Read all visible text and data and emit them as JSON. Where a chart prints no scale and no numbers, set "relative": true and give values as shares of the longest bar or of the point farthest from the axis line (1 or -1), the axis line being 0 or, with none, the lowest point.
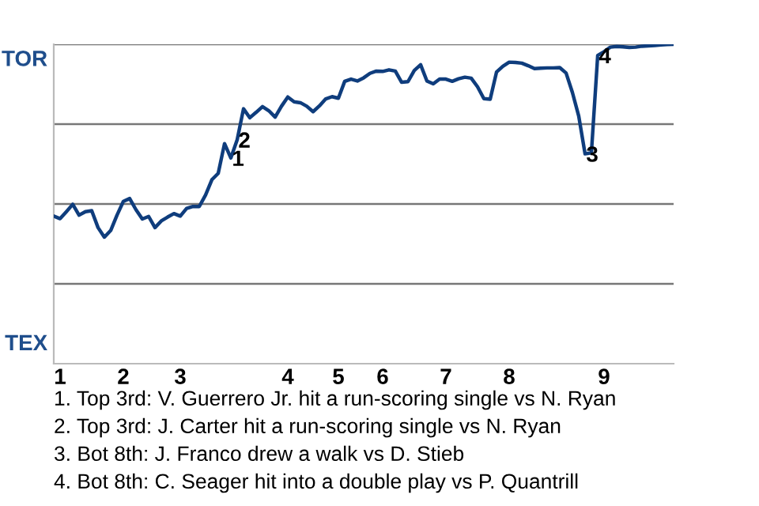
{
  "chart_data": {
    "type": "line",
    "relative": true,
    "categories": [
      null,
      "1",
      null,
      null,
      null,
      null,
      null,
      null,
      null,
      null,
      null,
      "2",
      null,
      null,
      null,
      null,
      null,
      null,
      null,
      null,
      "3",
      null,
      null,
      null,
      null,
      null,
      null,
      null,
      null,
      null,
      null,
      null,
      null,
      null,
      null,
      null,
      null,
      "4",
      null,
      null,
      null,
      null,
      null,
      null,
      null,
      "5",
      null,
      null,
      null,
      null,
      null,
      null,
      "6",
      null,
      null,
      null,
      null,
      null,
      null,
      null,
      null,
      null,
      "7",
      null,
      null,
      null,
      null,
      null,
      null,
      null,
      null,
      null,
      "8",
      null,
      null,
      null,
      null,
      null,
      null,
      null,
      null,
      null,
      null,
      null,
      null,
      null,
      null,
      "9",
      null,
      null,
      null,
      null,
      null,
      null,
      null,
      null,
      null,
      null,
      null
    ],
    "series": [
      {
        "color": "#0f3d7d",
        "values": [
          0.462,
          0.454,
          0.476,
          0.499,
          0.465,
          0.476,
          0.479,
          0.426,
          0.396,
          0.417,
          0.465,
          0.508,
          0.517,
          0.482,
          0.453,
          0.461,
          0.426,
          0.447,
          0.459,
          0.47,
          0.462,
          0.486,
          0.492,
          0.492,
          0.528,
          0.576,
          0.596,
          0.689,
          0.644,
          0.701,
          0.798,
          0.77,
          0.787,
          0.805,
          0.792,
          0.772,
          0.806,
          0.835,
          0.82,
          0.817,
          0.806,
          0.789,
          0.807,
          0.829,
          0.836,
          0.831,
          0.884,
          0.891,
          0.885,
          0.895,
          0.909,
          0.916,
          0.915,
          0.92,
          0.916,
          0.881,
          0.883,
          0.918,
          0.936,
          0.885,
          0.876,
          0.891,
          0.891,
          0.884,
          0.892,
          0.897,
          0.894,
          0.867,
          0.83,
          0.828,
          0.913,
          0.931,
          0.944,
          0.943,
          0.941,
          0.933,
          0.924,
          0.925,
          0.926,
          0.926,
          0.927,
          0.91,
          0.849,
          0.775,
          0.657,
          0.66,
          0.965,
          0.977,
          0.991,
          0.993,
          0.992,
          0.99,
          0.991,
          0.994,
          0.995,
          0.996,
          0.998,
          0.999,
          1.0
        ]
      }
    ],
    "ref_lines": [
      {
        "axis": "y",
        "value": 0.25,
        "color": "#777777"
      },
      {
        "axis": "y",
        "value": 0.5,
        "color": "#777777"
      },
      {
        "axis": "y",
        "value": 0.75,
        "color": "#777777"
      },
      {
        "axis": "y",
        "value": 1.0,
        "color": "#777777"
      }
    ],
    "annotations": [
      "TOR",
      "TEX",
      {
        "text": "1",
        "y": 0.644
      },
      {
        "text": "2",
        "y": 0.701
      },
      {
        "text": "3",
        "y": 0.657
      },
      {
        "text": "4",
        "y": 0.965
      },
      "1. Top 3rd: V. Guerrero Jr. hit a run-scoring single vs N. Ryan",
      "2. Top 3rd: J. Carter hit a run-scoring single vs N. Ryan",
      "3. Bot 8th: J. Franco drew a walk vs D. Stieb",
      "4. Bot 8th: C. Seager hit into a double play vs P. Quantrill"
    ],
    "legend": false,
    "marker": "none",
    "line_style": "solid"
  }
}
